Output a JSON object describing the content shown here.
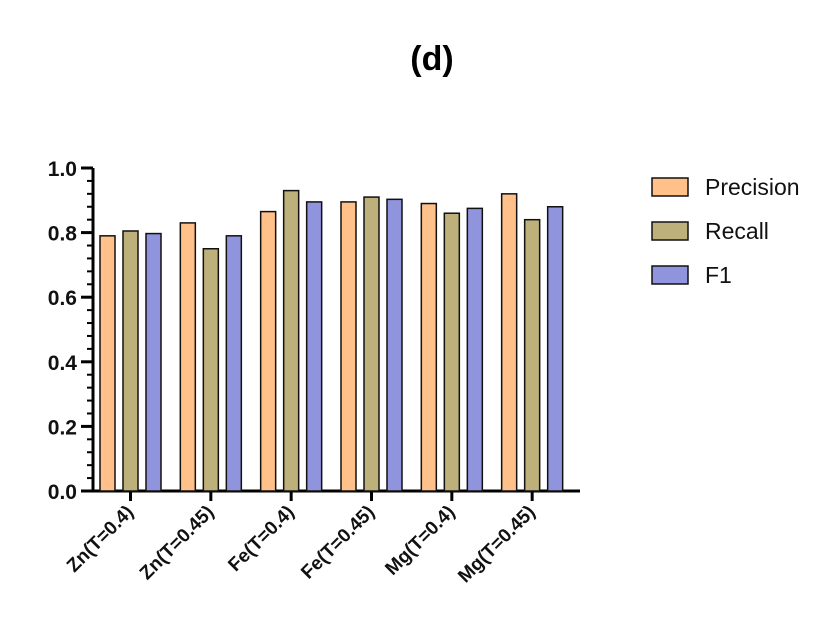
{
  "chart_data": {
    "type": "bar",
    "title": "(d)",
    "xlabel": "",
    "ylabel": "",
    "categories": [
      "Zn(T=0.4)",
      "Zn(T=0.45)",
      "Fe(T=0.4)",
      "Fe(T=0.45)",
      "Mg(T=0.4)",
      "Mg(T=0.45)"
    ],
    "series": [
      {
        "name": "Precision",
        "color": "#FFC08A",
        "values": [
          0.79,
          0.83,
          0.865,
          0.895,
          0.89,
          0.92
        ]
      },
      {
        "name": "Recall",
        "color": "#BDB07A",
        "values": [
          0.805,
          0.75,
          0.93,
          0.91,
          0.86,
          0.84
        ]
      },
      {
        "name": "F1",
        "color": "#8F94DC",
        "values": [
          0.797,
          0.79,
          0.895,
          0.903,
          0.875,
          0.88
        ]
      }
    ],
    "ylim": [
      0,
      1.0
    ],
    "yticks": [
      "0.0",
      "0.2",
      "0.4",
      "0.6",
      "0.8",
      "1.0"
    ],
    "grid": false,
    "legend_position": "top-right"
  }
}
